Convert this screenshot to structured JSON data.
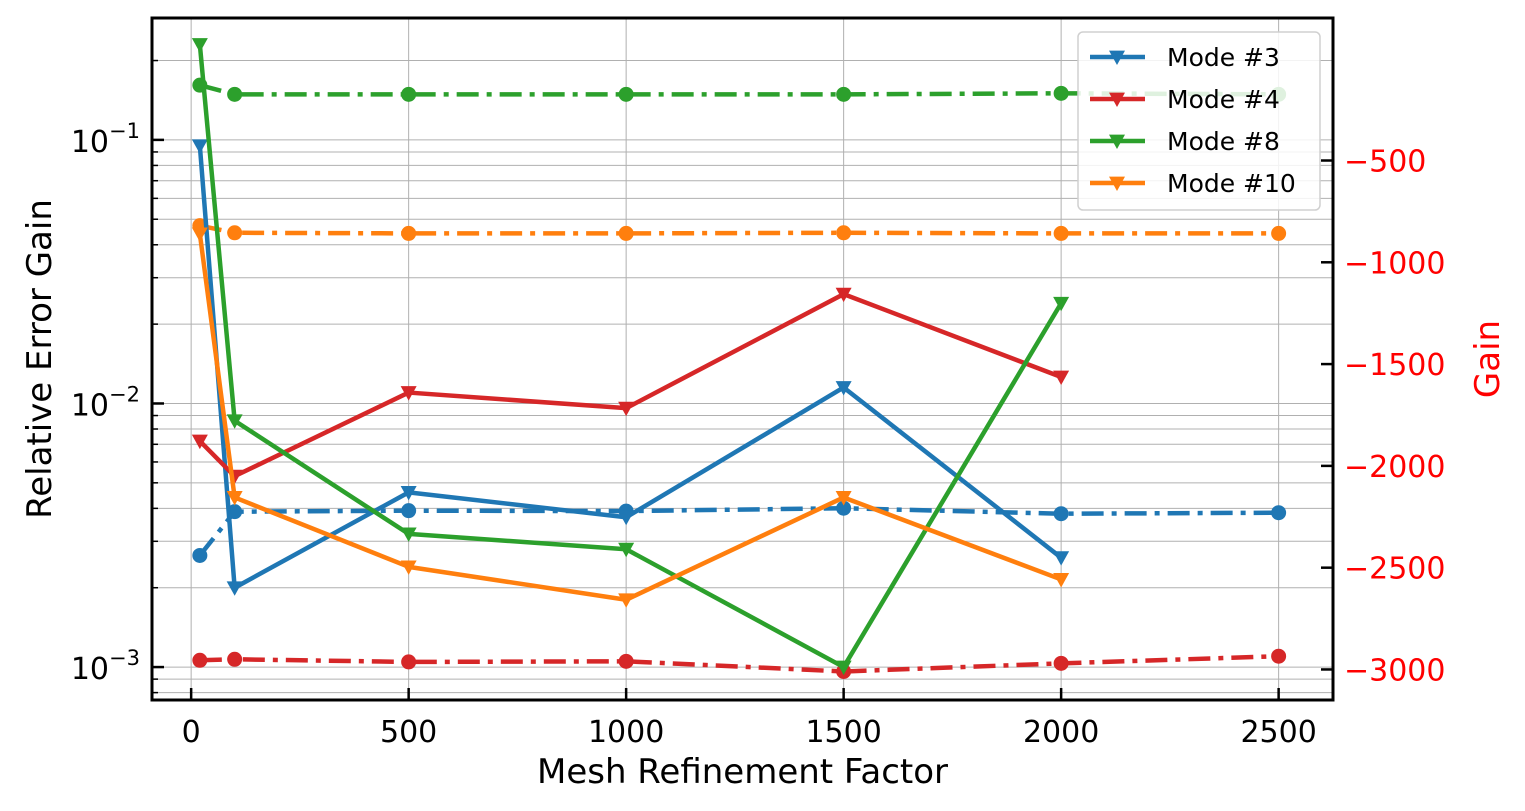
{
  "chart_data": {
    "type": "line",
    "xlabel": "Mesh Refinement Factor",
    "ylabel_left": "Relative Error Gain",
    "ylabel_right": "Gain",
    "left_axis": {
      "scale": "log",
      "ylim": [
        0.00075,
        0.29
      ],
      "ticks": [
        {
          "value": 0.001,
          "base": "10",
          "exp": "−3"
        },
        {
          "value": 0.01,
          "base": "10",
          "exp": "−2"
        },
        {
          "value": 0.1,
          "base": "10",
          "exp": "−1"
        }
      ]
    },
    "right_axis": {
      "scale": "linear",
      "ylim": [
        -3150,
        200
      ],
      "ticks": [
        -3000,
        -2500,
        -2000,
        -1500,
        -1000,
        -500
      ],
      "color": "#ff0000"
    },
    "x_axis": {
      "xlim": [
        -90,
        2625
      ],
      "ticks": [
        0,
        500,
        1000,
        1500,
        2000,
        2500
      ]
    },
    "grid": true,
    "legend_position": "top-right",
    "relative_error_series": [
      {
        "name": "Mode #3",
        "color": "#1f77b4",
        "x": [
          20,
          100,
          500,
          1000,
          1500,
          2000
        ],
        "y": [
          0.095,
          0.002,
          0.0046,
          0.0037,
          0.0115,
          0.0026
        ]
      },
      {
        "name": "Mode #4",
        "color": "#d62728",
        "x": [
          20,
          100,
          500,
          1000,
          1500,
          2000
        ],
        "y": [
          0.0072,
          0.0053,
          0.011,
          0.0096,
          0.026,
          0.0126
        ]
      },
      {
        "name": "Mode #8",
        "color": "#2ca02c",
        "x": [
          20,
          100,
          500,
          1000,
          1500,
          2000
        ],
        "y": [
          0.23,
          0.0086,
          0.0032,
          0.0028,
          0.001,
          0.024
        ]
      },
      {
        "name": "Mode #10",
        "color": "#ff7f0e",
        "x": [
          20,
          100,
          500,
          1000,
          1500,
          2000
        ],
        "y": [
          0.044,
          0.0044,
          0.0024,
          0.0018,
          0.0044,
          0.00215
        ]
      }
    ],
    "gain_series": [
      {
        "color": "#1f77b4",
        "x": [
          20,
          100,
          500,
          1000,
          1500,
          2000,
          2500
        ],
        "y": [
          -2440,
          -2225,
          -2220,
          -2222,
          -2208,
          -2235,
          -2230
        ]
      },
      {
        "color": "#d62728",
        "x": [
          20,
          100,
          500,
          1000,
          1500,
          2000,
          2500
        ],
        "y": [
          -2955,
          -2950,
          -2963,
          -2960,
          -3010,
          -2970,
          -2935
        ]
      },
      {
        "color": "#2ca02c",
        "x": [
          20,
          100,
          500,
          1000,
          1500,
          2000,
          2500
        ],
        "y": [
          -130,
          -175,
          -175,
          -175,
          -175,
          -170,
          -175
        ]
      },
      {
        "color": "#ff7f0e",
        "x": [
          20,
          100,
          500,
          1000,
          1500,
          2000,
          2500
        ],
        "y": [
          -820,
          -855,
          -858,
          -858,
          -855,
          -858,
          -858
        ]
      }
    ]
  }
}
